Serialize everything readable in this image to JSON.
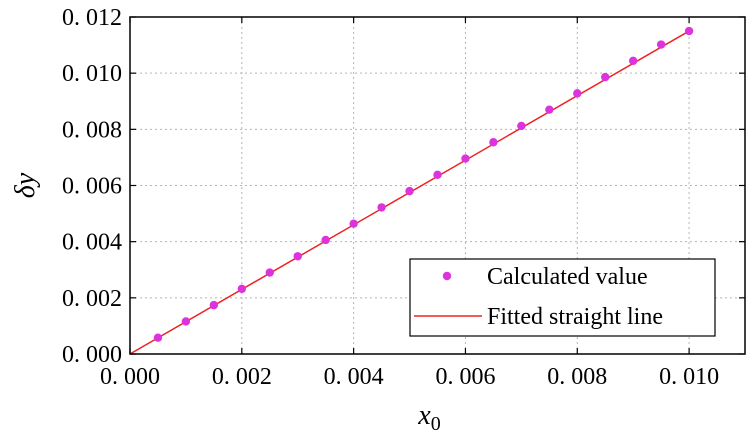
{
  "chart_data": {
    "type": "scatter",
    "xlabel": "x",
    "xlabel_subscript": "0",
    "ylabel": "δy",
    "xlim": [
      0,
      0.011
    ],
    "ylim": [
      0,
      0.012
    ],
    "x_ticks": [
      "0. 000",
      "0. 002",
      "0. 004",
      "0. 006",
      "0. 008",
      "0. 010"
    ],
    "x_tick_values": [
      0,
      0.002,
      0.004,
      0.006,
      0.008,
      0.01
    ],
    "y_ticks": [
      "0. 000",
      "0. 002",
      "0. 004",
      "0. 006",
      "0. 008",
      "0. 010",
      "0. 012"
    ],
    "y_tick_values": [
      0,
      0.002,
      0.004,
      0.006,
      0.008,
      0.01,
      0.012
    ],
    "grid": true,
    "legend_position": "bottom-right",
    "colors": {
      "scatter": "#dd33dd",
      "line": "#ee2222"
    },
    "series": [
      {
        "name": "Calculated value",
        "kind": "scatter",
        "x": [
          0.0005,
          0.001,
          0.0015,
          0.002,
          0.0025,
          0.003,
          0.0035,
          0.004,
          0.0045,
          0.005,
          0.0055,
          0.006,
          0.0065,
          0.007,
          0.0075,
          0.008,
          0.0085,
          0.009,
          0.0095,
          0.01
        ],
        "y": [
          0.00058,
          0.00116,
          0.00174,
          0.00232,
          0.0029,
          0.00348,
          0.00406,
          0.00464,
          0.00522,
          0.0058,
          0.00638,
          0.00696,
          0.00754,
          0.00812,
          0.0087,
          0.00928,
          0.00986,
          0.01044,
          0.01102,
          0.0115
        ]
      },
      {
        "name": "Fitted straight line",
        "kind": "line",
        "x": [
          0,
          0.01
        ],
        "y": [
          0,
          0.0115
        ]
      }
    ]
  }
}
